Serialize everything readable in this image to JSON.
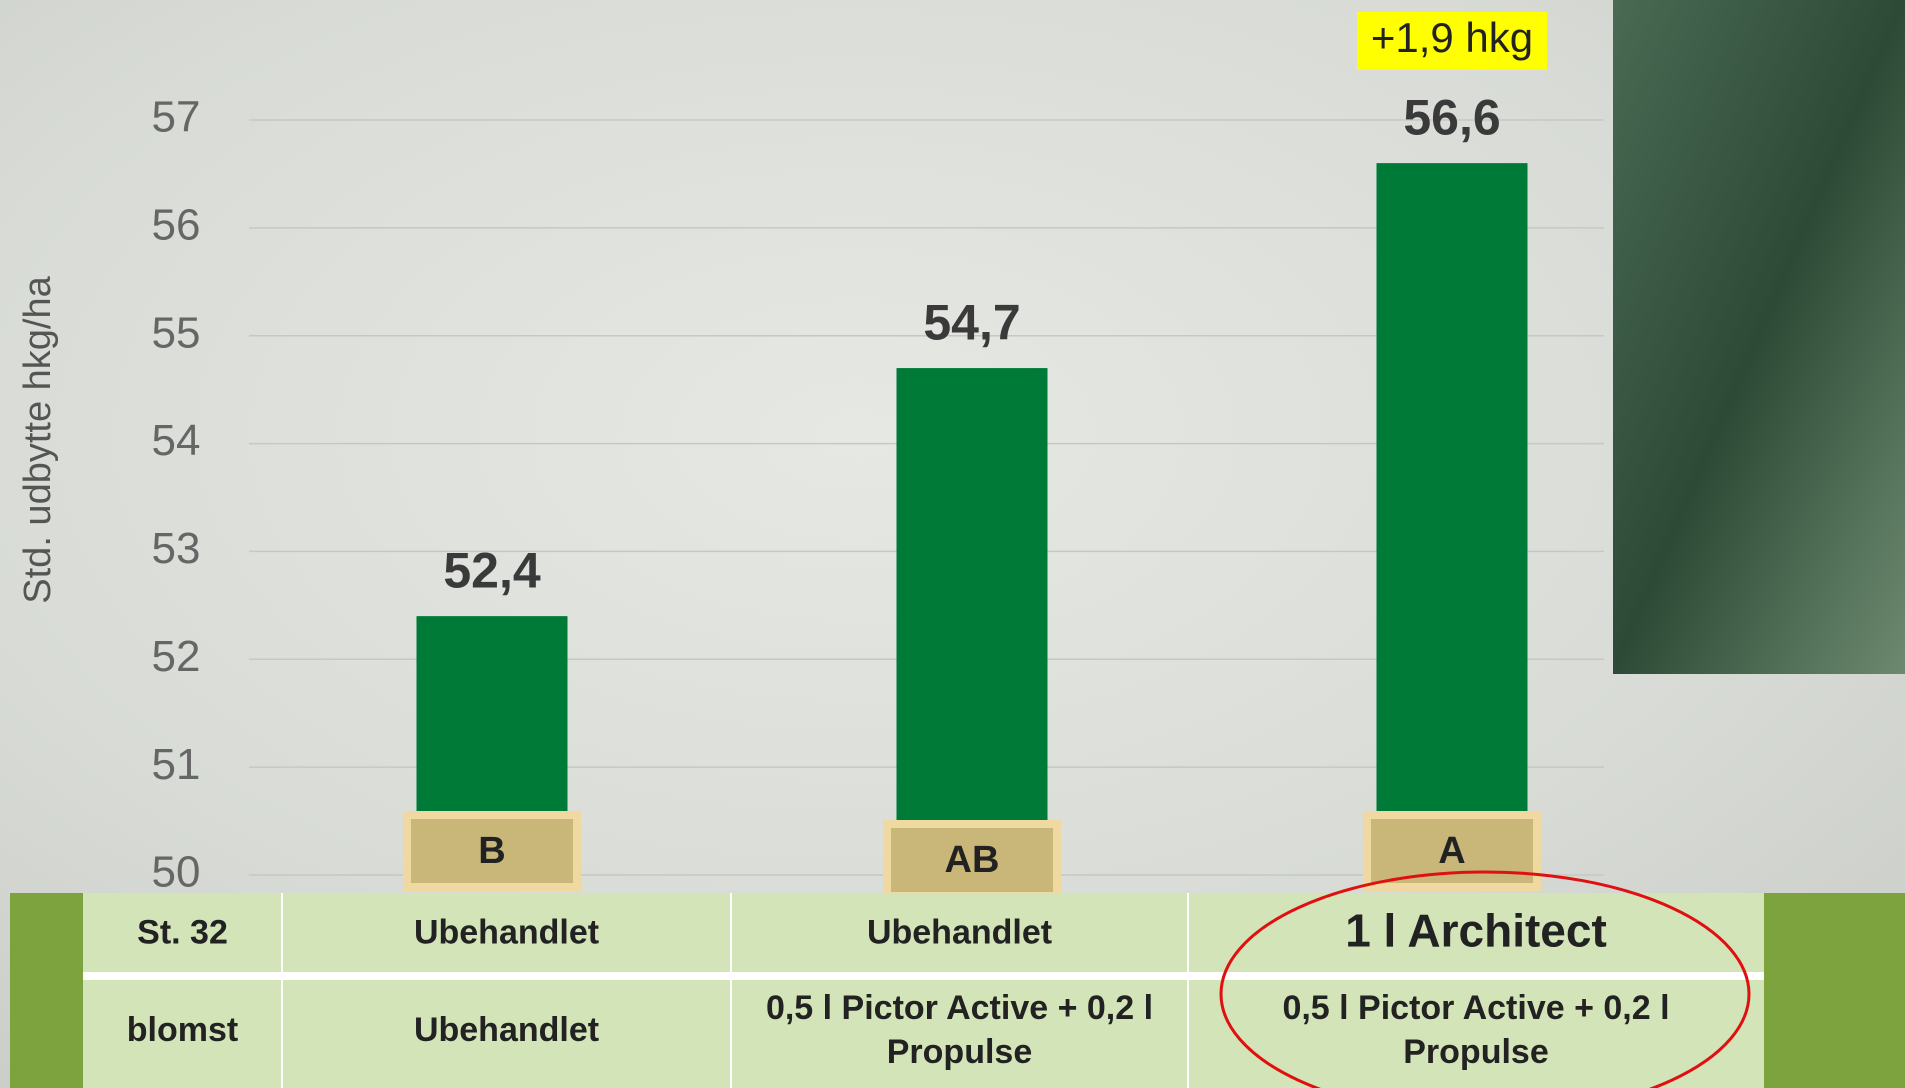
{
  "chart_data": {
    "type": "bar",
    "ylabel": "Std. udbytte hkg/ha",
    "values": [
      52.4,
      54.7,
      56.6
    ],
    "value_labels": [
      "52,4",
      "54,7",
      "56,6"
    ],
    "letters": [
      "B",
      "AB",
      "A"
    ],
    "annotation": "+1,9 hkg",
    "color": "#007a37",
    "ylim": [
      50,
      57
    ],
    "yticks": [
      50,
      51,
      52,
      53,
      54,
      55,
      56,
      57
    ],
    "grid": true
  },
  "table": {
    "rows": [
      [
        "St. 32",
        "Ubehandlet",
        "Ubehandlet",
        "1 l Architect"
      ],
      [
        "blomst",
        "Ubehandlet",
        "0,5 l Pictor Active + 0,2 l Propulse",
        "0,5 l Pictor Active + 0,2 l Propulse"
      ]
    ]
  }
}
